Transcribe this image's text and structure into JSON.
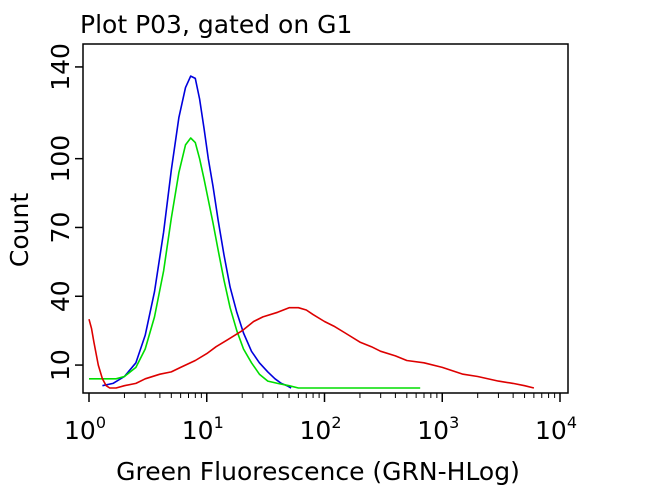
{
  "chart_data": {
    "type": "line",
    "title": "Plot P03, gated on G1",
    "xlabel": "Green Fluorescence (GRN-HLog)",
    "ylabel": "Count",
    "x_scale": "log",
    "xlim": [
      1,
      10000
    ],
    "ylim": [
      0,
      150
    ],
    "x_ticks": [
      {
        "value": 1,
        "base": "10",
        "exp": "0"
      },
      {
        "value": 10,
        "base": "10",
        "exp": "1"
      },
      {
        "value": 100,
        "base": "10",
        "exp": "2"
      },
      {
        "value": 1000,
        "base": "10",
        "exp": "3"
      },
      {
        "value": 10000,
        "base": "10",
        "exp": "4"
      }
    ],
    "y_ticks": [
      {
        "value": 10,
        "label": "10"
      },
      {
        "value": 40,
        "label": "40"
      },
      {
        "value": 70,
        "label": "70"
      },
      {
        "value": 100,
        "label": "100"
      },
      {
        "value": 140,
        "label": "140"
      }
    ],
    "grid": false,
    "legend": "none",
    "series": [
      {
        "color": "#0000dd",
        "x": [
          1.3,
          1.6,
          2.0,
          2.5,
          3.0,
          3.6,
          4.3,
          5.0,
          5.8,
          6.6,
          7.3,
          8.0,
          8.7,
          9.5,
          10.3,
          11.3,
          12.5,
          14.0,
          15.8,
          18.0,
          20.5,
          24.0,
          28.0,
          33.0,
          38.0,
          43.0,
          48.0,
          52.0
        ],
        "y": [
          1,
          2,
          5,
          11,
          23,
          42,
          68,
          95,
          118,
          131,
          136,
          135,
          126,
          113,
          100,
          88,
          73,
          58,
          44,
          33,
          24,
          16,
          11,
          7,
          4,
          2,
          1,
          0
        ]
      },
      {
        "color": "#00dd00",
        "x": [
          1.0,
          1.3,
          1.7,
          2.0,
          2.5,
          3.0,
          3.6,
          4.3,
          5.0,
          5.8,
          6.6,
          7.3,
          8.0,
          8.7,
          9.5,
          10.3,
          11.3,
          12.5,
          14.0,
          15.8,
          18.0,
          20.5,
          24.0,
          28.0,
          33.0,
          40.0,
          50.0,
          60.0,
          100.0,
          200.0,
          400.0,
          650.0
        ],
        "y": [
          4,
          4,
          4,
          5,
          9,
          17,
          31,
          51,
          74,
          94,
          106,
          109,
          107,
          100,
          91,
          82,
          72,
          60,
          47,
          35,
          25,
          17,
          11,
          6,
          3,
          2,
          1,
          0,
          0,
          0,
          0,
          0
        ]
      },
      {
        "color": "#dd0000",
        "x": [
          1.0,
          1.05,
          1.1,
          1.2,
          1.3,
          1.4,
          1.5,
          1.7,
          2.0,
          2.5,
          3.0,
          4.0,
          5.0,
          6.0,
          8.0,
          10.0,
          12.0,
          15.0,
          20.0,
          25.0,
          30.0,
          40.0,
          50.0,
          60.0,
          70.0,
          80.0,
          100.0,
          120.0,
          150.0,
          200.0,
          250.0,
          300.0,
          400.0,
          500.0,
          700.0,
          1000.0,
          1500.0,
          2000.0,
          3000.0,
          4000.0,
          5000.0,
          6000.0
        ],
        "y": [
          30,
          26,
          20,
          10,
          4,
          1,
          0,
          0,
          1,
          2,
          4,
          6,
          7,
          9,
          12,
          15,
          18,
          21,
          25,
          29,
          31,
          33,
          35,
          35,
          34,
          32,
          29,
          27,
          24,
          20,
          18,
          16,
          14,
          12,
          11,
          9,
          6,
          5,
          3,
          2,
          1,
          0
        ]
      }
    ]
  }
}
